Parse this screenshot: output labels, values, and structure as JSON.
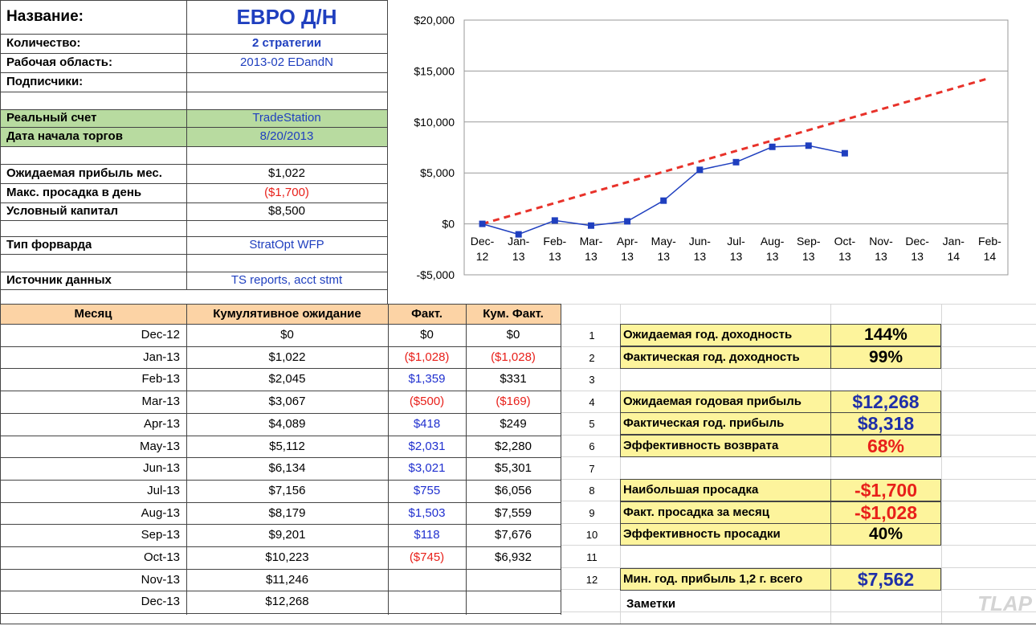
{
  "info": {
    "rows": [
      {
        "label": "Название:",
        "value": "ЕВРО Д/Н",
        "color": "#1f3fbf"
      },
      {
        "label": "Количество:",
        "value": "2 стратегии",
        "color": "#1f3fbf"
      },
      {
        "label": "Рабочая область:",
        "value": "2013-02 EDandN",
        "color": "#1f3fbf"
      },
      {
        "label": "Подписчики:"
      },
      {
        "label": "Реальный счет",
        "value": "TradeStation",
        "color": "#1f3fbf",
        "fill": "#b8dba0"
      },
      {
        "label": "Дата начала торгов",
        "value": "8/20/2013",
        "color": "#1f3fbf",
        "fill": "#b8dba0"
      },
      {
        "label": "Ожидаемая прибыль мес.",
        "value": "$1,022",
        "color": "#000000"
      },
      {
        "label": "Макс. просадка в день",
        "value": "($1,700)",
        "color": "#e8201a"
      },
      {
        "label": "Условный капитал",
        "value": "$8,500",
        "color": "#000000"
      },
      {
        "label": "Тип форварда",
        "value": "StratOpt WFP",
        "color": "#1f3fbf"
      },
      {
        "label": "Источник данных",
        "value": "TS reports, acct stmt",
        "color": "#1f3fbf"
      }
    ]
  },
  "chart_data": {
    "type": "line",
    "categories": [
      "Dec-12",
      "Jan-13",
      "Feb-13",
      "Mar-13",
      "Apr-13",
      "May-13",
      "Jun-13",
      "Jul-13",
      "Aug-13",
      "Sep-13",
      "Oct-13",
      "Nov-13",
      "Dec-13",
      "Jan-14",
      "Feb-14"
    ],
    "series": [
      {
        "color": "#e8322a",
        "dashed": true,
        "values": [
          0,
          1022,
          2045,
          3067,
          4089,
          5112,
          6134,
          7156,
          8179,
          9201,
          10223,
          11246,
          12268,
          13290,
          14313
        ]
      },
      {
        "color": "#1f3fbf",
        "markers": "square",
        "values": [
          0,
          -1028,
          331,
          -169,
          249,
          2280,
          5301,
          6056,
          7559,
          7676,
          6932,
          null,
          null,
          null,
          null
        ]
      }
    ],
    "ylim": [
      -5000,
      20000
    ],
    "yticks": [
      {
        "value": -5000,
        "label": "-$5,000"
      },
      {
        "value": 0,
        "label": "$0"
      },
      {
        "value": 5000,
        "label": "$5,000"
      },
      {
        "value": 10000,
        "label": "$10,000"
      },
      {
        "value": 15000,
        "label": "$15,000"
      },
      {
        "value": 20000,
        "label": "$20,000"
      }
    ],
    "grid": true
  },
  "table": {
    "header": [
      "Месяц",
      "Кумулятивное ожидание",
      "Факт.",
      "Кум. Факт."
    ],
    "rows": [
      [
        "Dec-12",
        "$0",
        "$0",
        "$0"
      ],
      [
        "Jan-13",
        "$1,022",
        "($1,028)",
        "($1,028)"
      ],
      [
        "Feb-13",
        "$2,045",
        "$1,359",
        "$331"
      ],
      [
        "Mar-13",
        "$3,067",
        "($500)",
        "($169)"
      ],
      [
        "Apr-13",
        "$4,089",
        "$418",
        "$249"
      ],
      [
        "May-13",
        "$5,112",
        "$2,031",
        "$2,280"
      ],
      [
        "Jun-13",
        "$6,134",
        "$3,021",
        "$5,301"
      ],
      [
        "Jul-13",
        "$7,156",
        "$755",
        "$6,056"
      ],
      [
        "Aug-13",
        "$8,179",
        "$1,503",
        "$7,559"
      ],
      [
        "Sep-13",
        "$9,201",
        "$118",
        "$7,676"
      ],
      [
        "Oct-13",
        "$10,223",
        "($745)",
        "$6,932"
      ],
      [
        "Nov-13",
        "$11,246"
      ],
      [
        "Dec-13",
        "$12,268"
      ]
    ]
  },
  "summary": {
    "rows": [
      {
        "number": "1",
        "label": "Ожидаемая год. доходность",
        "value": "144%",
        "color": "#000000"
      },
      {
        "number": "2",
        "label": "Фактическая год. доходность",
        "value": "99%",
        "color": "#000000"
      },
      {
        "number": "3"
      },
      {
        "number": "4",
        "label": "Ожидаемая годовая прибыль",
        "value": "$12,268",
        "color": "#1f2fa8"
      },
      {
        "number": "5",
        "label": "Фактическая год. прибыль",
        "value": "$8,318",
        "color": "#1f2fa8"
      },
      {
        "number": "6",
        "label": "Эффективность возврата",
        "value": "68%",
        "color": "#e8201a"
      },
      {
        "number": "7"
      },
      {
        "number": "8",
        "label": "Наибольшая просадка",
        "value": "-$1,700",
        "color": "#e8201a"
      },
      {
        "number": "9",
        "label": "Факт. просадка за месяц",
        "value": "-$1,028",
        "color": "#e8201a"
      },
      {
        "number": "10",
        "label": "Эффективность просадки",
        "value": "40%",
        "color": "#000000"
      },
      {
        "number": "11"
      },
      {
        "number": "12",
        "label": "Мин. год. прибыль 1,2 г. всего",
        "value": "$7,562",
        "color": "#1f2fa8"
      }
    ],
    "notes": "Заметки"
  },
  "watermark": "TLAP"
}
